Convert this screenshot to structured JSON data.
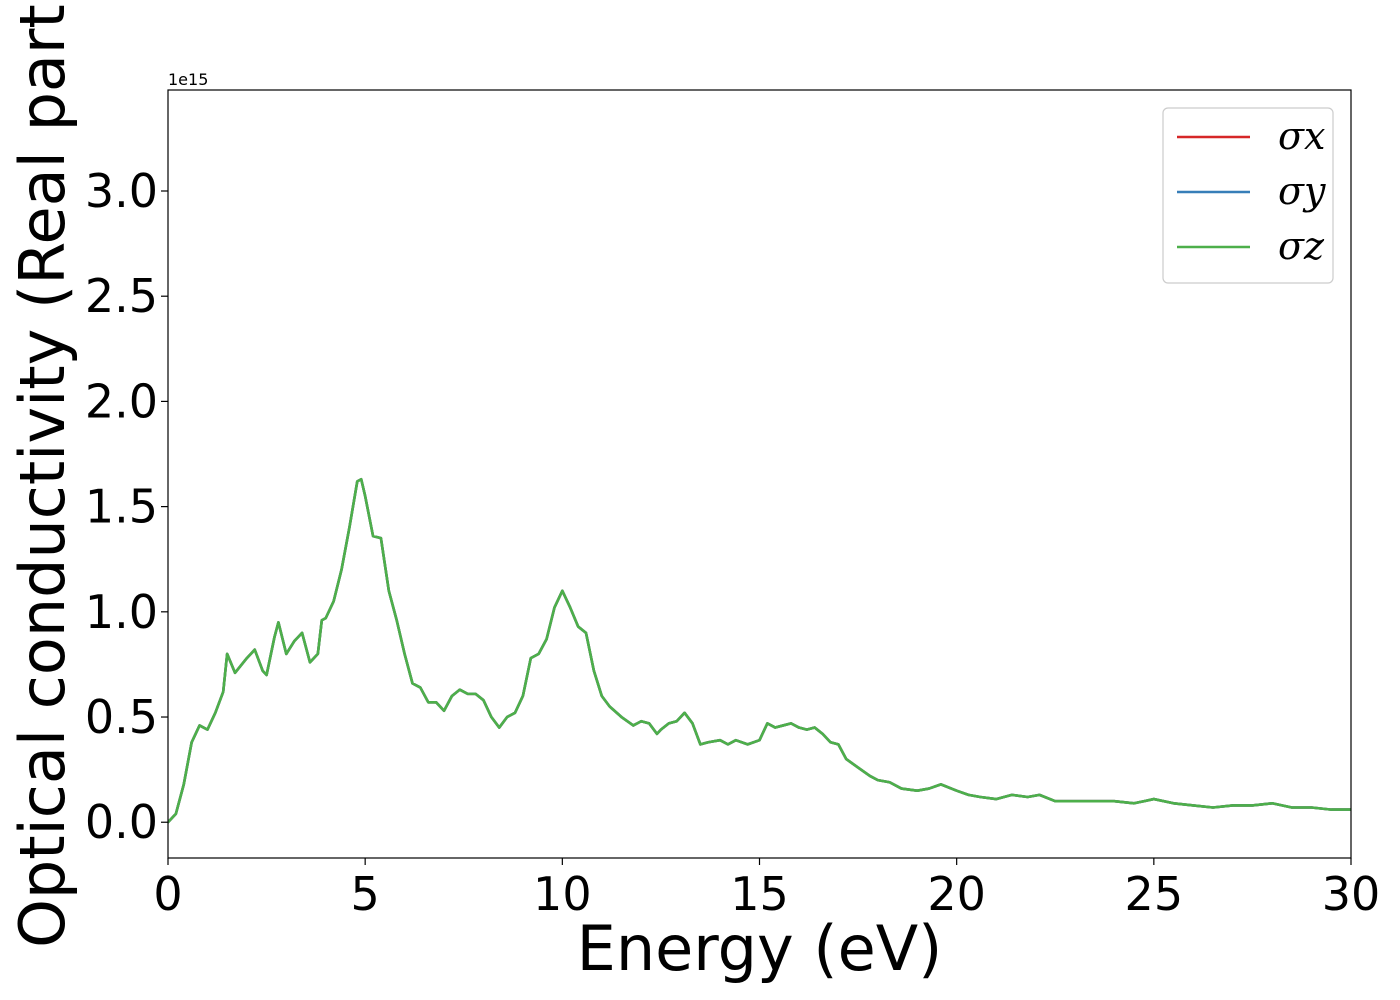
{
  "chart_data": {
    "type": "line",
    "title": "",
    "xlabel": "Energy (eV)",
    "ylabel": "Optical conductivity (Real part)",
    "y_offset_label": "1e15",
    "xlim": [
      0,
      30
    ],
    "ylim": [
      -0.17,
      3.48
    ],
    "xticks": [
      0,
      5,
      10,
      15,
      20,
      25,
      30
    ],
    "xtick_labels": [
      "0",
      "5",
      "10",
      "15",
      "20",
      "25",
      "30"
    ],
    "yticks": [
      0.0,
      0.5,
      1.0,
      1.5,
      2.0,
      2.5,
      3.0
    ],
    "ytick_labels": [
      "0.0",
      "0.5",
      "1.0",
      "1.5",
      "2.0",
      "2.5",
      "3.0"
    ],
    "grid": false,
    "legend_position": "top-right",
    "x": [
      0,
      0.2,
      0.4,
      0.6,
      0.8,
      1.0,
      1.2,
      1.4,
      1.5,
      1.7,
      2.0,
      2.2,
      2.4,
      2.5,
      2.7,
      2.8,
      3.0,
      3.2,
      3.4,
      3.6,
      3.8,
      3.9,
      4.0,
      4.2,
      4.4,
      4.6,
      4.8,
      4.9,
      5.0,
      5.2,
      5.4,
      5.6,
      5.8,
      6.0,
      6.2,
      6.4,
      6.6,
      6.8,
      7.0,
      7.2,
      7.4,
      7.6,
      7.8,
      8.0,
      8.2,
      8.4,
      8.6,
      8.8,
      9.0,
      9.2,
      9.4,
      9.6,
      9.8,
      10.0,
      10.2,
      10.4,
      10.6,
      10.8,
      11.0,
      11.2,
      11.5,
      11.8,
      12.0,
      12.2,
      12.4,
      12.5,
      12.7,
      12.9,
      13.1,
      13.3,
      13.5,
      13.7,
      14.0,
      14.2,
      14.4,
      14.7,
      15.0,
      15.2,
      15.4,
      15.6,
      15.8,
      16.0,
      16.2,
      16.4,
      16.6,
      16.8,
      17.0,
      17.2,
      17.5,
      17.8,
      18.0,
      18.3,
      18.6,
      19.0,
      19.3,
      19.6,
      20.0,
      20.3,
      20.6,
      21.0,
      21.4,
      21.8,
      22.1,
      22.5,
      23.0,
      23.5,
      24.0,
      24.5,
      25.0,
      25.5,
      26.0,
      26.5,
      27.0,
      27.5,
      28.0,
      28.5,
      29.0,
      29.5,
      30.0
    ],
    "series": [
      {
        "name": "σx",
        "color": "#d62728",
        "values": [
          0.0,
          0.04,
          0.18,
          0.38,
          0.46,
          0.44,
          0.52,
          0.62,
          0.8,
          0.71,
          0.78,
          0.82,
          0.72,
          0.7,
          0.88,
          0.95,
          0.8,
          0.86,
          0.9,
          0.76,
          0.8,
          0.96,
          0.97,
          1.05,
          1.2,
          1.4,
          1.62,
          1.63,
          1.55,
          1.36,
          1.35,
          1.1,
          0.96,
          0.8,
          0.66,
          0.64,
          0.57,
          0.57,
          0.53,
          0.6,
          0.63,
          0.61,
          0.61,
          0.58,
          0.5,
          0.45,
          0.5,
          0.52,
          0.6,
          0.78,
          0.8,
          0.87,
          1.02,
          1.1,
          1.02,
          0.93,
          0.9,
          0.72,
          0.6,
          0.55,
          0.5,
          0.46,
          0.48,
          0.47,
          0.42,
          0.44,
          0.47,
          0.48,
          0.52,
          0.47,
          0.37,
          0.38,
          0.39,
          0.37,
          0.39,
          0.37,
          0.39,
          0.47,
          0.45,
          0.46,
          0.47,
          0.45,
          0.44,
          0.45,
          0.42,
          0.38,
          0.37,
          0.3,
          0.26,
          0.22,
          0.2,
          0.19,
          0.16,
          0.15,
          0.16,
          0.18,
          0.15,
          0.13,
          0.12,
          0.11,
          0.13,
          0.12,
          0.13,
          0.1,
          0.1,
          0.1,
          0.1,
          0.09,
          0.11,
          0.09,
          0.08,
          0.07,
          0.08,
          0.08,
          0.09,
          0.07,
          0.07,
          0.06,
          0.06
        ]
      },
      {
        "name": "σy",
        "color": "#377eb8",
        "values": [
          0.0,
          0.04,
          0.18,
          0.38,
          0.46,
          0.44,
          0.52,
          0.62,
          0.8,
          0.71,
          0.78,
          0.82,
          0.72,
          0.7,
          0.88,
          0.95,
          0.8,
          0.86,
          0.9,
          0.76,
          0.8,
          0.96,
          0.97,
          1.05,
          1.2,
          1.4,
          1.62,
          1.63,
          1.55,
          1.36,
          1.35,
          1.1,
          0.96,
          0.8,
          0.66,
          0.64,
          0.57,
          0.57,
          0.53,
          0.6,
          0.63,
          0.61,
          0.61,
          0.58,
          0.5,
          0.45,
          0.5,
          0.52,
          0.6,
          0.78,
          0.8,
          0.87,
          1.02,
          1.1,
          1.02,
          0.93,
          0.9,
          0.72,
          0.6,
          0.55,
          0.5,
          0.46,
          0.48,
          0.47,
          0.42,
          0.44,
          0.47,
          0.48,
          0.52,
          0.47,
          0.37,
          0.38,
          0.39,
          0.37,
          0.39,
          0.37,
          0.39,
          0.47,
          0.45,
          0.46,
          0.47,
          0.45,
          0.44,
          0.45,
          0.42,
          0.38,
          0.37,
          0.3,
          0.26,
          0.22,
          0.2,
          0.19,
          0.16,
          0.15,
          0.16,
          0.18,
          0.15,
          0.13,
          0.12,
          0.11,
          0.13,
          0.12,
          0.13,
          0.1,
          0.1,
          0.1,
          0.1,
          0.09,
          0.11,
          0.09,
          0.08,
          0.07,
          0.08,
          0.08,
          0.09,
          0.07,
          0.07,
          0.06,
          0.06
        ]
      },
      {
        "name": "σz",
        "color": "#4daf4a",
        "values": [
          0.0,
          0.04,
          0.18,
          0.38,
          0.46,
          0.44,
          0.52,
          0.62,
          0.8,
          0.71,
          0.78,
          0.82,
          0.72,
          0.7,
          0.88,
          0.95,
          0.8,
          0.86,
          0.9,
          0.76,
          0.8,
          0.96,
          0.97,
          1.05,
          1.2,
          1.4,
          1.62,
          1.63,
          1.55,
          1.36,
          1.35,
          1.1,
          0.96,
          0.8,
          0.66,
          0.64,
          0.57,
          0.57,
          0.53,
          0.6,
          0.63,
          0.61,
          0.61,
          0.58,
          0.5,
          0.45,
          0.5,
          0.52,
          0.6,
          0.78,
          0.8,
          0.87,
          1.02,
          1.1,
          1.02,
          0.93,
          0.9,
          0.72,
          0.6,
          0.55,
          0.5,
          0.46,
          0.48,
          0.47,
          0.42,
          0.44,
          0.47,
          0.48,
          0.52,
          0.47,
          0.37,
          0.38,
          0.39,
          0.37,
          0.39,
          0.37,
          0.39,
          0.47,
          0.45,
          0.46,
          0.47,
          0.45,
          0.44,
          0.45,
          0.42,
          0.38,
          0.37,
          0.3,
          0.26,
          0.22,
          0.2,
          0.19,
          0.16,
          0.15,
          0.16,
          0.18,
          0.15,
          0.13,
          0.12,
          0.11,
          0.13,
          0.12,
          0.13,
          0.1,
          0.1,
          0.1,
          0.1,
          0.09,
          0.11,
          0.09,
          0.08,
          0.07,
          0.08,
          0.08,
          0.09,
          0.07,
          0.07,
          0.06,
          0.06
        ]
      }
    ]
  }
}
